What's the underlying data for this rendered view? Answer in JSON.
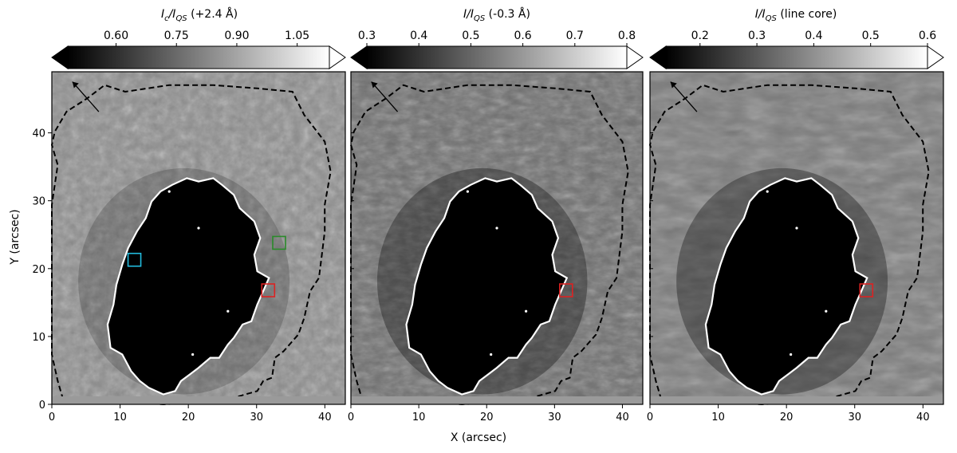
{
  "chart_data": [
    {
      "type": "heatmap",
      "colorbar": {
        "label_main": "I",
        "label_sub1": "c",
        "label_mid": "/I",
        "label_sub2": "QS",
        "label_tail": " (+2.4 Å)",
        "range": [
          0.48,
          1.13
        ],
        "ticks": [
          0.6,
          0.75,
          0.9,
          1.05
        ],
        "tick_labels": [
          "0.60",
          "0.75",
          "0.90",
          "1.05"
        ]
      },
      "xlim": [
        0,
        43
      ],
      "ylim": [
        0,
        49
      ],
      "xticks": [
        0,
        10,
        20,
        30,
        40
      ],
      "xtick_labels": [
        "0",
        "10",
        "20",
        "30",
        "40"
      ],
      "yticks": [
        0,
        10,
        20,
        30,
        40
      ],
      "ytick_labels": [
        "0",
        "10",
        "20",
        "30",
        "40"
      ],
      "ylabel": "Y (arcsec)",
      "boxes": [
        {
          "color": "#22bbdd",
          "x": 12.1,
          "y": 21.3
        },
        {
          "color": "#2a8a2a",
          "x": 33.3,
          "y": 23.8
        },
        {
          "color": "#dd2222",
          "x": 31.7,
          "y": 16.8
        }
      ]
    },
    {
      "type": "heatmap",
      "colorbar": {
        "label_main": "I/I",
        "label_sub2": "QS",
        "label_tail": " (-0.3 Å)",
        "range": [
          0.3,
          0.8
        ],
        "ticks": [
          0.3,
          0.4,
          0.5,
          0.6,
          0.7,
          0.8
        ],
        "tick_labels": [
          "0.3",
          "0.4",
          "0.5",
          "0.6",
          "0.7",
          "0.8"
        ]
      },
      "xlim": [
        0,
        43
      ],
      "ylim": [
        0,
        49
      ],
      "xticks": [
        0,
        10,
        20,
        30,
        40
      ],
      "xtick_labels": [
        "0",
        "10",
        "20",
        "30",
        "40"
      ],
      "xlabel": "X (arcsec)",
      "boxes": [
        {
          "color": "#dd2222",
          "x": 31.7,
          "y": 16.8
        }
      ]
    },
    {
      "type": "heatmap",
      "colorbar": {
        "label_main": "I/I",
        "label_sub2": "QS",
        "label_tail": " (line core)",
        "range": [
          0.14,
          0.6
        ],
        "ticks": [
          0.2,
          0.3,
          0.4,
          0.5,
          0.6
        ],
        "tick_labels": [
          "0.2",
          "0.3",
          "0.4",
          "0.5",
          "0.6"
        ]
      },
      "xlim": [
        0,
        43
      ],
      "ylim": [
        0,
        49
      ],
      "xticks": [
        0,
        10,
        20,
        30,
        40
      ],
      "xtick_labels": [
        "0",
        "10",
        "20",
        "30",
        "40"
      ],
      "boxes": [
        {
          "color": "#dd2222",
          "x": 31.7,
          "y": 16.8
        }
      ]
    }
  ],
  "colors": {
    "umbra_contour": "#ffffff",
    "penumbra_contour": "#000000"
  }
}
